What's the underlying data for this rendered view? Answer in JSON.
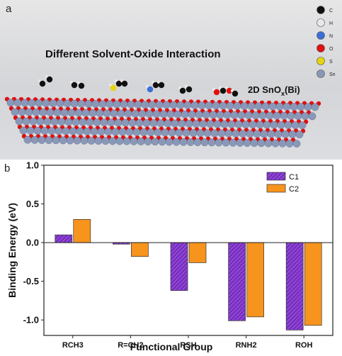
{
  "panel_a": {
    "label": "a",
    "title": "Different Solvent-Oxide Interaction",
    "material_label_main": "2D SnO",
    "material_label_sub": "x",
    "material_label_tail": "(Bi)",
    "legend": [
      {
        "symbol": "C",
        "color": "#111111"
      },
      {
        "symbol": "H",
        "color": "#e8e8e8"
      },
      {
        "symbol": "N",
        "color": "#3a6fd6"
      },
      {
        "symbol": "O",
        "color": "#e01010"
      },
      {
        "symbol": "S",
        "color": "#e6d40c"
      },
      {
        "symbol": "Sn",
        "color": "#8a98b8"
      }
    ]
  },
  "panel_b": {
    "label": "b"
  },
  "chart_data": {
    "type": "bar",
    "categories": [
      "RCH3",
      "R=CH2",
      "RSH",
      "RNH2",
      "ROH"
    ],
    "series": [
      {
        "name": "C1",
        "values": [
          0.1,
          -0.02,
          -0.62,
          -1.01,
          -1.13
        ],
        "color": "#7a2ec4"
      },
      {
        "name": "C2",
        "values": [
          0.3,
          -0.18,
          -0.26,
          -0.96,
          -1.07
        ],
        "color": "#f7941d"
      }
    ],
    "xlabel": "Functional Group",
    "ylabel": "Binding Energy (eV)",
    "ylim": [
      -1.2,
      1.0
    ],
    "yticks": [
      "1.0",
      "0.5",
      "0.0",
      "-0.5",
      "-1.0"
    ],
    "ytick_values": [
      1.0,
      0.5,
      0.0,
      -0.5,
      -1.0
    ],
    "legend_position": "top-right",
    "grid": false
  }
}
